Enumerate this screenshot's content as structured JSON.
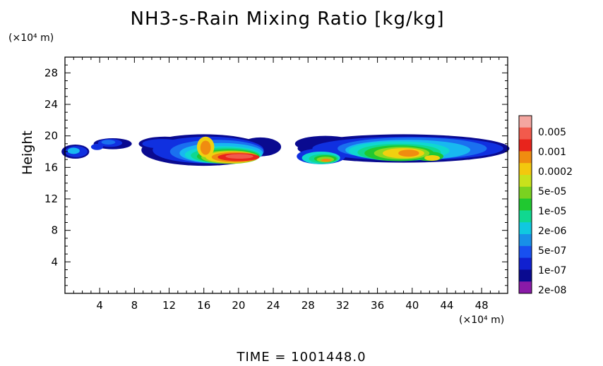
{
  "chart_data": {
    "type": "heatmap",
    "title": "NH3-s-Rain Mixing Ratio [kg/kg]",
    "xlabel": "",
    "ylabel": "Height",
    "x_unit": "(×10⁴ m)",
    "y_unit": "(×10⁴ m)",
    "xlim": [
      0,
      51
    ],
    "ylim": [
      0,
      30
    ],
    "x_ticks": [
      4,
      8,
      12,
      16,
      20,
      24,
      28,
      32,
      36,
      40,
      44,
      48
    ],
    "y_ticks": [
      4,
      8,
      12,
      16,
      20,
      24,
      28
    ],
    "colorbar_labels": [
      "0.005",
      "0.001",
      "0.0002",
      "5e-05",
      "1e-05",
      "2e-06",
      "5e-07",
      "1e-07",
      "2e-08"
    ],
    "colorbar_colors": [
      "#f4a6a0",
      "#f25a4c",
      "#e8241c",
      "#f08c10",
      "#f3c80e",
      "#c8e21c",
      "#7ad220",
      "#20c830",
      "#10d890",
      "#10c8e0",
      "#1890e8",
      "#1850f0",
      "#1020d0",
      "#0a0a90",
      "#8a1aa8"
    ],
    "cloud_layer": {
      "z_range": [
        15.9,
        20.2
      ],
      "regions": [
        {
          "x": [
            0,
            3
          ],
          "z": [
            17.0,
            19.0
          ],
          "max": "2e-06"
        },
        {
          "x": [
            3,
            8
          ],
          "z": [
            18.3,
            20.0
          ],
          "max": "1e-07"
        },
        {
          "x": [
            9,
            24
          ],
          "z": [
            15.9,
            20.2
          ],
          "max": "0.001"
        },
        {
          "x": [
            27,
            51
          ],
          "z": [
            16.2,
            20.0
          ],
          "max": "0.0002"
        }
      ]
    },
    "footer": "TIME  =  1001448.0"
  }
}
